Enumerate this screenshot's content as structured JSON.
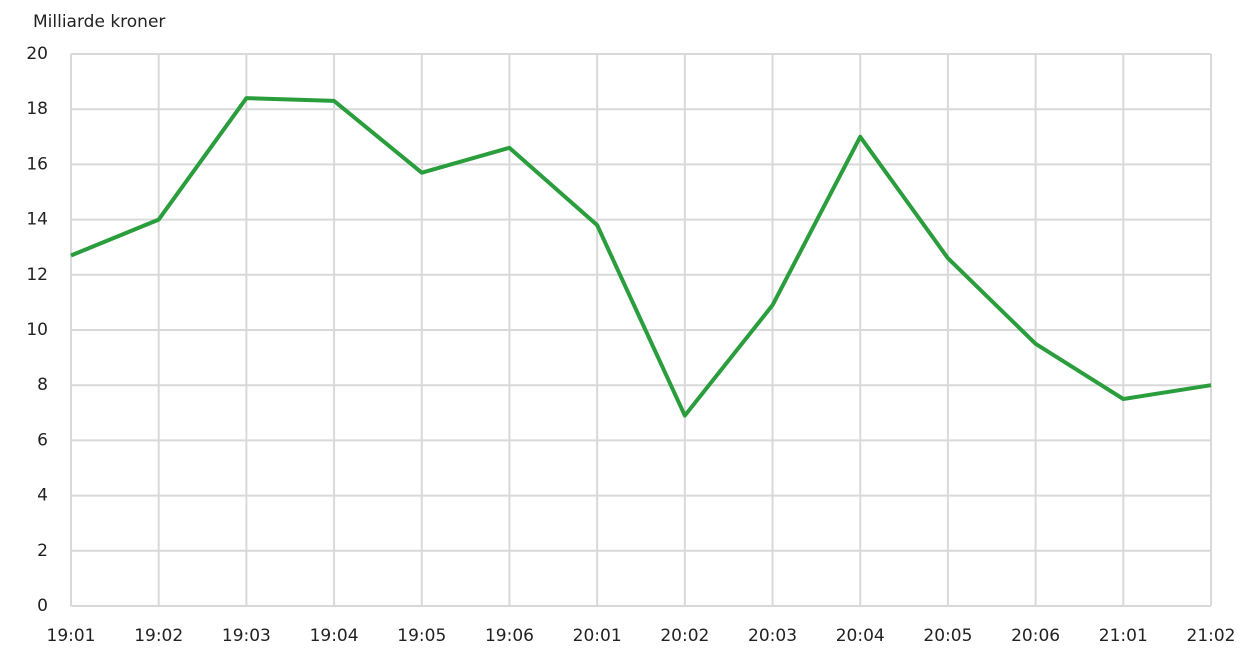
{
  "chart_data": {
    "type": "line",
    "y_label": "Milliarde kroner",
    "categories": [
      "19:01",
      "19:02",
      "19:03",
      "19:04",
      "19:05",
      "19:06",
      "20:01",
      "20:02",
      "20:03",
      "20:04",
      "20:05",
      "20:06",
      "21:01",
      "21:02"
    ],
    "values": [
      12.7,
      14.0,
      18.4,
      18.3,
      15.7,
      16.6,
      13.8,
      6.9,
      10.9,
      17.0,
      12.6,
      9.5,
      7.5,
      8.0
    ],
    "color": "#2a9d3c",
    "ylim": [
      0,
      20
    ],
    "yticks": [
      0,
      2,
      4,
      6,
      8,
      10,
      12,
      14,
      16,
      18,
      20
    ],
    "grid": true
  }
}
